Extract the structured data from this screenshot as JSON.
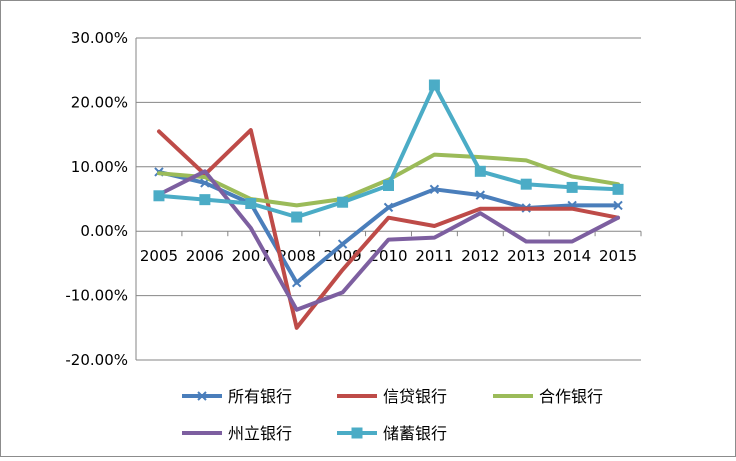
{
  "chart_data": {
    "type": "line",
    "categories": [
      "2005",
      "2006",
      "2007",
      "2008",
      "2009",
      "2010",
      "2011",
      "2012",
      "2013",
      "2014",
      "2015"
    ],
    "ylim": [
      -0.2,
      0.3
    ],
    "yticks": [
      0.3,
      0.2,
      0.1,
      0.0,
      -0.1,
      -0.2
    ],
    "ytick_labels": [
      "30.00%",
      "20.00%",
      "10.00%",
      "0.00%",
      "-10.00%",
      "-20.00%"
    ],
    "grid": true,
    "legend_position": "bottom",
    "series": [
      {
        "name": "所有银行",
        "color": "#4a7ebb",
        "marker": "x",
        "values": [
          0.092,
          0.075,
          0.043,
          -0.08,
          -0.02,
          0.037,
          0.065,
          0.056,
          0.036,
          0.04,
          0.04
        ]
      },
      {
        "name": "信贷银行",
        "color": "#be4b48",
        "marker": "none",
        "values": [
          0.155,
          0.088,
          0.157,
          -0.15,
          -0.06,
          0.021,
          0.008,
          0.035,
          0.035,
          0.035,
          0.021
        ]
      },
      {
        "name": "合作银行",
        "color": "#9bbb59",
        "marker": "none",
        "values": [
          0.09,
          0.084,
          0.05,
          0.04,
          0.05,
          0.08,
          0.119,
          0.115,
          0.11,
          0.085,
          0.073
        ]
      },
      {
        "name": "州立银行",
        "color": "#7d5fa0",
        "marker": "none",
        "values": [
          0.057,
          0.093,
          0.005,
          -0.122,
          -0.095,
          -0.013,
          -0.01,
          0.028,
          -0.016,
          -0.016,
          0.021
        ]
      },
      {
        "name": "储蓄银行",
        "color": "#4bacc6",
        "marker": "square",
        "values": [
          0.055,
          0.049,
          0.043,
          0.022,
          0.045,
          0.071,
          0.227,
          0.093,
          0.073,
          0.068,
          0.065
        ]
      }
    ]
  }
}
